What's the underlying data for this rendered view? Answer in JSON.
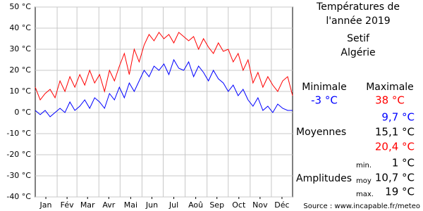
{
  "chart_data": {
    "type": "line",
    "x": [
      1,
      8,
      15,
      22,
      29,
      36,
      43,
      50,
      57,
      64,
      71,
      78,
      85,
      92,
      99,
      106,
      113,
      120,
      127,
      134,
      141,
      148,
      155,
      162,
      169,
      176,
      183,
      190,
      197,
      204,
      211,
      218,
      225,
      232,
      239,
      246,
      253,
      260,
      267,
      274,
      281,
      288,
      295,
      302,
      309,
      316,
      323,
      330,
      337,
      344,
      351,
      358,
      365
    ],
    "series": [
      {
        "name": "Maximale",
        "color": "#ff0000",
        "values": [
          12,
          6,
          9,
          11,
          7,
          15,
          10,
          17,
          12,
          18,
          13,
          20,
          14,
          18,
          10,
          20,
          15,
          22,
          28,
          18,
          30,
          24,
          32,
          37,
          34,
          38,
          35,
          37,
          33,
          38,
          36,
          34,
          36,
          30,
          35,
          31,
          28,
          33,
          29,
          30,
          24,
          28,
          20,
          25,
          14,
          19,
          12,
          17,
          13,
          10,
          15,
          17,
          8
        ]
      },
      {
        "name": "Minimale",
        "color": "#0000ff",
        "values": [
          1,
          -1,
          1,
          -2,
          0,
          2,
          0,
          5,
          1,
          3,
          6,
          2,
          7,
          5,
          2,
          9,
          6,
          12,
          7,
          14,
          10,
          15,
          20,
          17,
          22,
          20,
          23,
          18,
          25,
          21,
          20,
          24,
          17,
          22,
          19,
          15,
          20,
          16,
          14,
          10,
          13,
          8,
          11,
          6,
          3,
          7,
          1,
          3,
          0,
          4,
          2,
          1,
          1
        ]
      }
    ],
    "xlim": [
      1,
      365
    ],
    "xticks": [
      {
        "value": 16,
        "label": "Jan"
      },
      {
        "value": 46,
        "label": "Fév"
      },
      {
        "value": 75,
        "label": "Mar"
      },
      {
        "value": 105,
        "label": "Avr"
      },
      {
        "value": 136,
        "label": "Mai"
      },
      {
        "value": 166,
        "label": "Jun"
      },
      {
        "value": 197,
        "label": "Jul"
      },
      {
        "value": 228,
        "label": "Aoû"
      },
      {
        "value": 258,
        "label": "Sep"
      },
      {
        "value": 289,
        "label": "Oct"
      },
      {
        "value": 319,
        "label": "Nov"
      },
      {
        "value": 350,
        "label": "Déc"
      }
    ],
    "xgrid": [
      32,
      60,
      91,
      121,
      152,
      182,
      213,
      244,
      274,
      305,
      335
    ],
    "ylim": [
      -40,
      50
    ],
    "yticks": [
      {
        "value": -40,
        "label": "-40 °C"
      },
      {
        "value": -30,
        "label": "-30 °C"
      },
      {
        "value": -20,
        "label": "-20 °C"
      },
      {
        "value": -10,
        "label": "-10 °C"
      },
      {
        "value": 0,
        "label": "0 °C"
      },
      {
        "value": 10,
        "label": "10 °C"
      },
      {
        "value": 20,
        "label": "20 °C"
      },
      {
        "value": 30,
        "label": "30 °C"
      },
      {
        "value": 40,
        "label": "40 °C"
      },
      {
        "value": 50,
        "label": "50 °C"
      }
    ],
    "grid": true
  },
  "panel": {
    "title": [
      "Températures de",
      "l'année 2019"
    ],
    "city": "Setif",
    "country": "Algérie",
    "min_label": "Minimale",
    "max_label": "Maximale",
    "min_value": "-3 °C",
    "max_value": "38 °C",
    "mean_label": "Moyennes",
    "mean_min": "9,7 °C",
    "mean_all": "15,1 °C",
    "mean_max": "20,4 °C",
    "amp_label": "Amplitudes",
    "amp_min_label": "min.",
    "amp_min": "1 °C",
    "amp_moy_label": "moy",
    "amp_moy": "10,7 °C",
    "amp_max_label": "max.",
    "amp_max": "19 °C",
    "source": "Source : www.incapable.fr/meteo"
  }
}
